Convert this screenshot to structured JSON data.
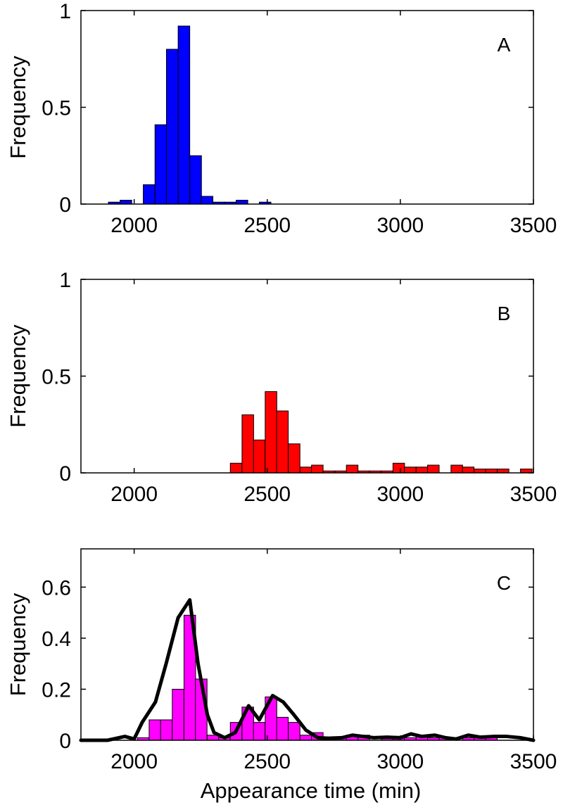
{
  "chart_data": [
    {
      "type": "bar",
      "panel": "A",
      "title": "",
      "xlabel": "",
      "ylabel": "Frequency",
      "xlim": [
        1800,
        3500
      ],
      "ylim": [
        0,
        1
      ],
      "xticks": [
        2000,
        2500,
        3000,
        3500
      ],
      "yticks": [
        0,
        0.5,
        1
      ],
      "ytick_labels": [
        "0",
        "0.5",
        "1"
      ],
      "bin_width": 43.6,
      "color": "#0000ff",
      "bars": [
        {
          "x": 1925,
          "value": 0.01
        },
        {
          "x": 1969,
          "value": 0.02
        },
        {
          "x": 2056,
          "value": 0.1
        },
        {
          "x": 2100,
          "value": 0.41
        },
        {
          "x": 2143,
          "value": 0.8
        },
        {
          "x": 2187,
          "value": 0.92
        },
        {
          "x": 2231,
          "value": 0.25
        },
        {
          "x": 2274,
          "value": 0.04
        },
        {
          "x": 2318,
          "value": 0.01
        },
        {
          "x": 2361,
          "value": 0.01
        },
        {
          "x": 2405,
          "value": 0.02
        },
        {
          "x": 2492,
          "value": 0.01
        }
      ]
    },
    {
      "type": "bar",
      "panel": "B",
      "title": "",
      "xlabel": "",
      "ylabel": "Frequency",
      "xlim": [
        1800,
        3500
      ],
      "ylim": [
        0,
        1
      ],
      "xticks": [
        2000,
        2500,
        3000,
        3500
      ],
      "yticks": [
        0,
        0.5,
        1
      ],
      "ytick_labels": [
        "0",
        "0.5",
        "1"
      ],
      "bin_width": 43.6,
      "color": "#ff0000",
      "bars": [
        {
          "x": 2383,
          "value": 0.05
        },
        {
          "x": 2427,
          "value": 0.3
        },
        {
          "x": 2470,
          "value": 0.17
        },
        {
          "x": 2514,
          "value": 0.42
        },
        {
          "x": 2557,
          "value": 0.32
        },
        {
          "x": 2601,
          "value": 0.15
        },
        {
          "x": 2645,
          "value": 0.03
        },
        {
          "x": 2688,
          "value": 0.04
        },
        {
          "x": 2732,
          "value": 0.01
        },
        {
          "x": 2776,
          "value": 0.01
        },
        {
          "x": 2819,
          "value": 0.04
        },
        {
          "x": 2863,
          "value": 0.01
        },
        {
          "x": 2906,
          "value": 0.01
        },
        {
          "x": 2950,
          "value": 0.01
        },
        {
          "x": 2994,
          "value": 0.05
        },
        {
          "x": 3037,
          "value": 0.03
        },
        {
          "x": 3081,
          "value": 0.03
        },
        {
          "x": 3124,
          "value": 0.04
        },
        {
          "x": 3212,
          "value": 0.04
        },
        {
          "x": 3255,
          "value": 0.03
        },
        {
          "x": 3299,
          "value": 0.02
        },
        {
          "x": 3342,
          "value": 0.02
        },
        {
          "x": 3386,
          "value": 0.02
        },
        {
          "x": 3473,
          "value": 0.02
        }
      ]
    },
    {
      "type": "bar",
      "panel": "C",
      "title": "",
      "xlabel": "Appearance time (min)",
      "ylabel": "Frequency",
      "xlim": [
        1800,
        3500
      ],
      "ylim": [
        0,
        0.75
      ],
      "xticks": [
        2000,
        2500,
        3000,
        3500
      ],
      "yticks": [
        0,
        0.2,
        0.4,
        0.6
      ],
      "ytick_labels": [
        "0",
        "0.2",
        "0.4",
        "0.6"
      ],
      "bin_width": 43.6,
      "color": "#ff00ff",
      "bars": [
        {
          "x": 2034,
          "value": 0.01
        },
        {
          "x": 2078,
          "value": 0.08
        },
        {
          "x": 2121,
          "value": 0.08
        },
        {
          "x": 2165,
          "value": 0.2
        },
        {
          "x": 2209,
          "value": 0.49
        },
        {
          "x": 2252,
          "value": 0.24
        },
        {
          "x": 2296,
          "value": 0.02
        },
        {
          "x": 2339,
          "value": 0.01
        },
        {
          "x": 2383,
          "value": 0.07
        },
        {
          "x": 2427,
          "value": 0.13
        },
        {
          "x": 2470,
          "value": 0.07
        },
        {
          "x": 2514,
          "value": 0.17
        },
        {
          "x": 2557,
          "value": 0.09
        },
        {
          "x": 2601,
          "value": 0.07
        },
        {
          "x": 2645,
          "value": 0.02
        },
        {
          "x": 2688,
          "value": 0.03
        },
        {
          "x": 2732,
          "value": 0.01
        },
        {
          "x": 2776,
          "value": 0.01
        },
        {
          "x": 2819,
          "value": 0.02
        },
        {
          "x": 2863,
          "value": 0.02
        },
        {
          "x": 2950,
          "value": 0.01
        },
        {
          "x": 2994,
          "value": 0.01
        },
        {
          "x": 3037,
          "value": 0.01
        },
        {
          "x": 3081,
          "value": 0.02
        },
        {
          "x": 3124,
          "value": 0.01
        },
        {
          "x": 3168,
          "value": 0.01
        },
        {
          "x": 3255,
          "value": 0.01
        },
        {
          "x": 3299,
          "value": 0.01
        },
        {
          "x": 3342,
          "value": 0.01
        }
      ],
      "line": {
        "color": "#000000",
        "points": [
          [
            1800,
            0
          ],
          [
            1900,
            0
          ],
          [
            1965,
            0.015
          ],
          [
            2000,
            0.005
          ],
          [
            2030,
            0.07
          ],
          [
            2080,
            0.15
          ],
          [
            2120,
            0.3
          ],
          [
            2165,
            0.48
          ],
          [
            2209,
            0.55
          ],
          [
            2240,
            0.3
          ],
          [
            2275,
            0.1
          ],
          [
            2300,
            0.03
          ],
          [
            2340,
            0.01
          ],
          [
            2380,
            0.03
          ],
          [
            2430,
            0.135
          ],
          [
            2470,
            0.08
          ],
          [
            2520,
            0.175
          ],
          [
            2560,
            0.15
          ],
          [
            2600,
            0.1
          ],
          [
            2645,
            0.04
          ],
          [
            2690,
            0.01
          ],
          [
            2730,
            0.008
          ],
          [
            2780,
            0.01
          ],
          [
            2820,
            0.02
          ],
          [
            2860,
            0.015
          ],
          [
            2900,
            0.01
          ],
          [
            2950,
            0.012
          ],
          [
            3000,
            0.01
          ],
          [
            3040,
            0.025
          ],
          [
            3080,
            0.015
          ],
          [
            3130,
            0.02
          ],
          [
            3170,
            0.01
          ],
          [
            3210,
            0.005
          ],
          [
            3255,
            0.02
          ],
          [
            3300,
            0.012
          ],
          [
            3350,
            0.015
          ],
          [
            3400,
            0.015
          ],
          [
            3450,
            0.01
          ],
          [
            3500,
            0.0
          ]
        ]
      }
    }
  ],
  "panels": [
    {
      "label": "A",
      "ylabel": "Frequency",
      "xlabel": ""
    },
    {
      "label": "B",
      "ylabel": "Frequency",
      "xlabel": ""
    },
    {
      "label": "C",
      "ylabel": "Frequency",
      "xlabel": "Appearance time (min)"
    }
  ]
}
